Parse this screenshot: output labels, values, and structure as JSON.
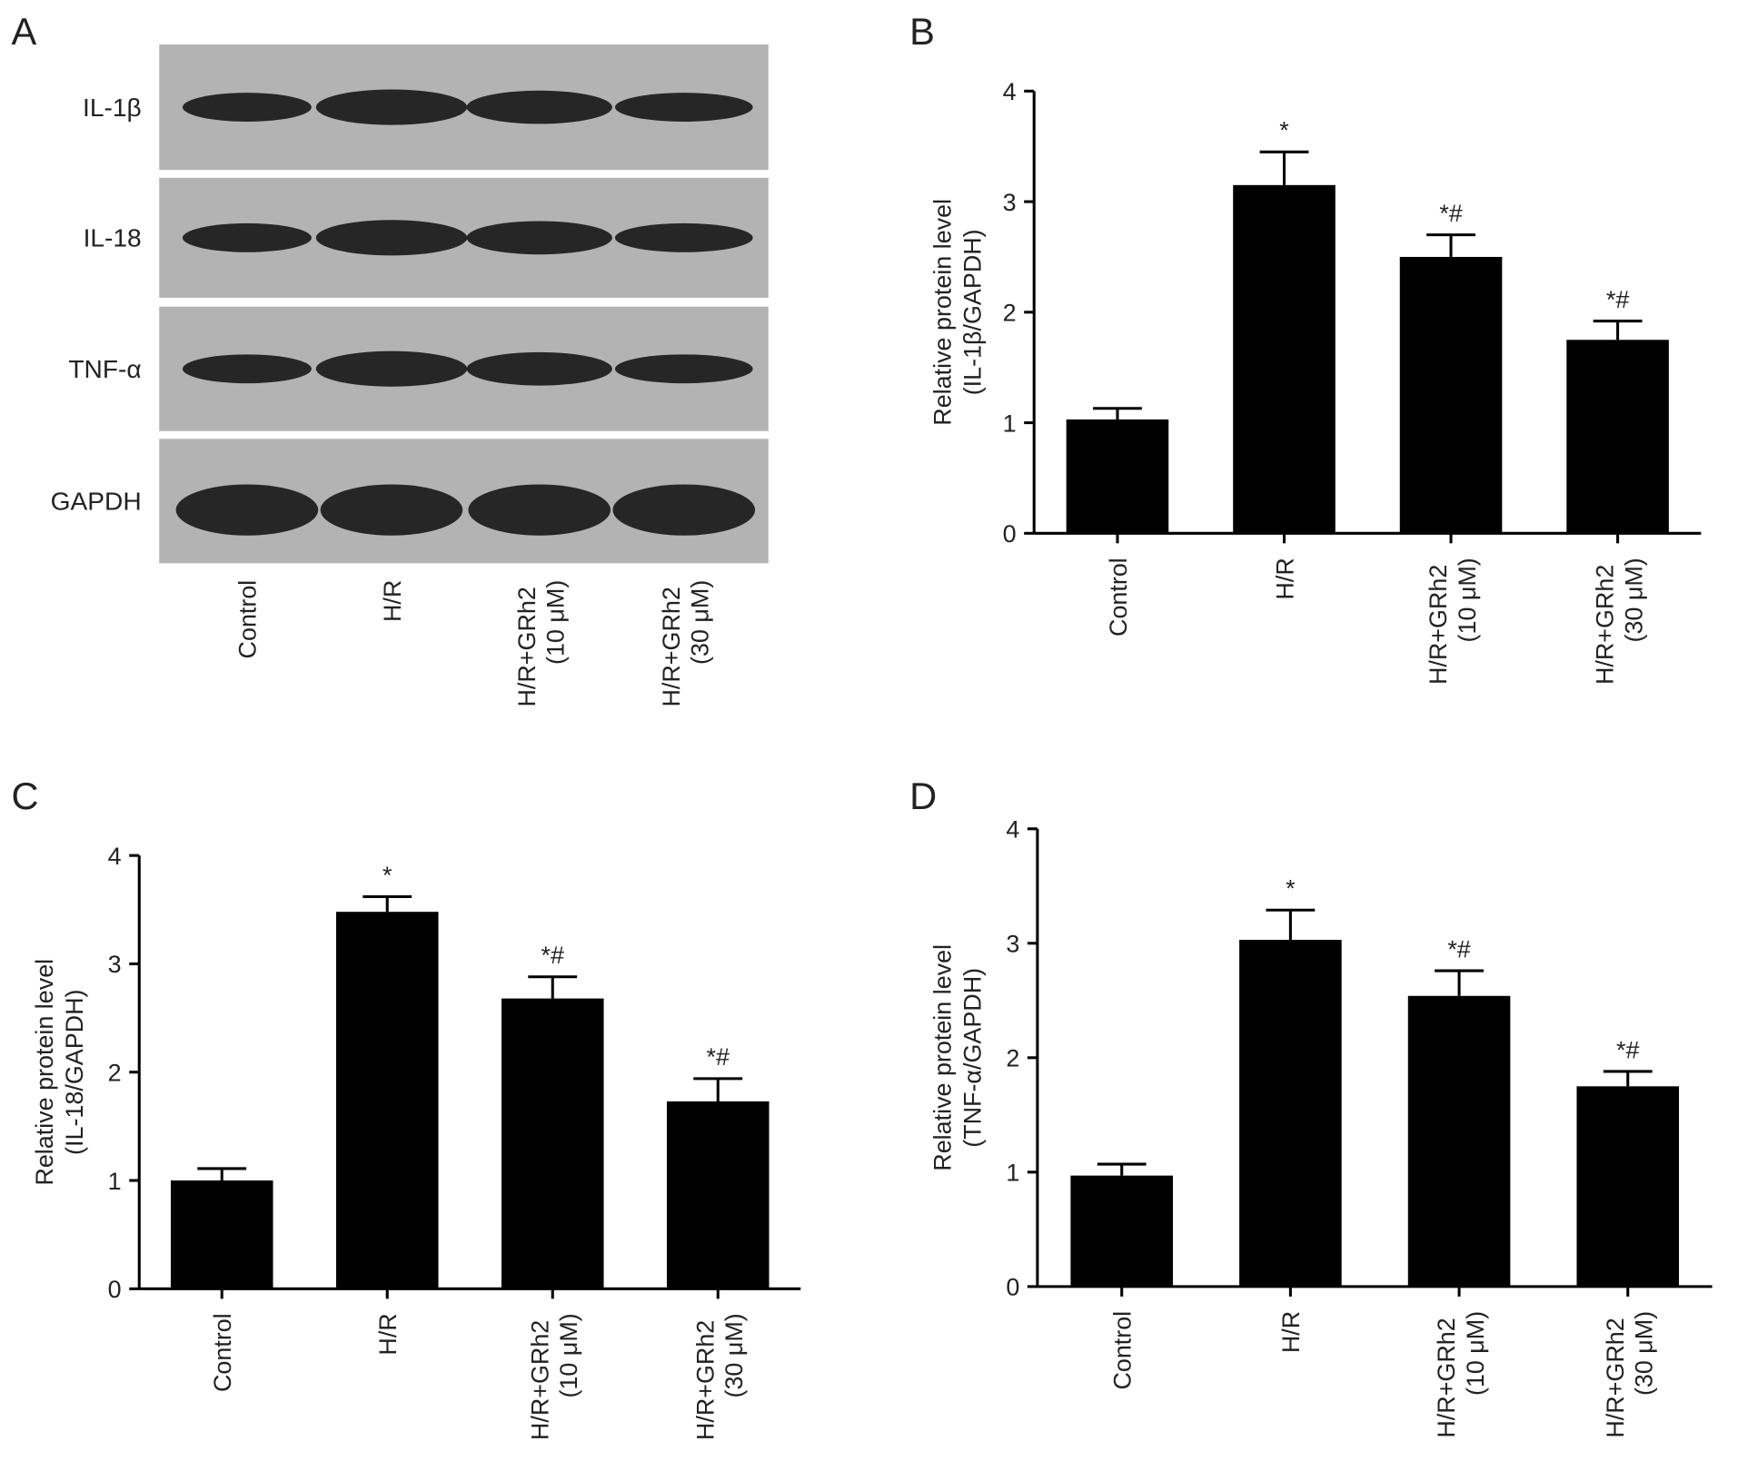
{
  "blot": {
    "panel_label": "A",
    "proteins": [
      "IL-1β",
      "IL-18",
      "TNF-α",
      "GAPDH"
    ],
    "lanes": [
      "Control",
      "H/R",
      "H/R+GRh2 (10 μM)",
      "H/R+GRh2 (30 μM)"
    ]
  },
  "chart_data": [
    {
      "type": "bar",
      "panel_label": "B",
      "y_label": [
        "Relative protein level",
        "(IL-1β/GAPDH)"
      ],
      "categories": [
        "Control",
        "H/R",
        "H/R+GRh2 (10 μM)",
        "H/R+GRh2 (30 μM)"
      ],
      "values": [
        1.03,
        3.15,
        2.5,
        1.75
      ],
      "errors": [
        0.1,
        0.3,
        0.2,
        0.17
      ],
      "annotations": [
        null,
        "*",
        "*#",
        "*#"
      ],
      "color": "#000000",
      "ylim": [
        0,
        4
      ],
      "yticks": [
        0,
        1,
        2,
        3,
        4
      ]
    },
    {
      "type": "bar",
      "panel_label": "C",
      "y_label": [
        "Relative protein level",
        "(IL-18/GAPDH)"
      ],
      "categories": [
        "Control",
        "H/R",
        "H/R+GRh2 (10 μM)",
        "H/R+GRh2 (30 μM)"
      ],
      "values": [
        1.0,
        3.48,
        2.68,
        1.73
      ],
      "errors": [
        0.11,
        0.14,
        0.2,
        0.21
      ],
      "annotations": [
        null,
        "*",
        "*#",
        "*#"
      ],
      "color": "#000000",
      "ylim": [
        0,
        4
      ],
      "yticks": [
        0,
        1,
        2,
        3,
        4
      ]
    },
    {
      "type": "bar",
      "panel_label": "D",
      "y_label": [
        "Relative protein level",
        "(TNF-α/GAPDH)"
      ],
      "categories": [
        "Control",
        "H/R",
        "H/R+GRh2 (10 μM)",
        "H/R+GRh2 (30 μM)"
      ],
      "values": [
        0.97,
        3.03,
        2.54,
        1.75
      ],
      "errors": [
        0.1,
        0.26,
        0.22,
        0.13
      ],
      "annotations": [
        null,
        "*",
        "*#",
        "*#"
      ],
      "color": "#000000",
      "ylim": [
        0,
        4
      ],
      "yticks": [
        0,
        1,
        2,
        3,
        4
      ]
    }
  ]
}
